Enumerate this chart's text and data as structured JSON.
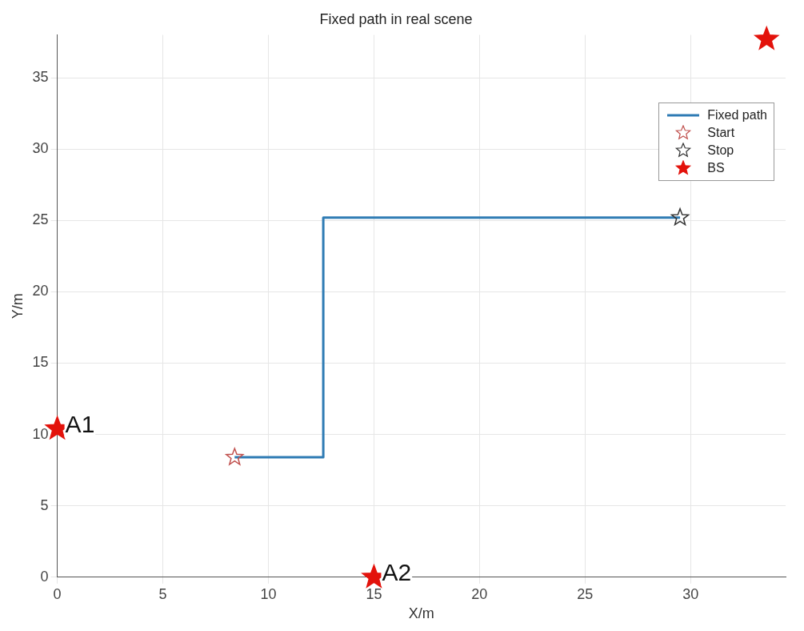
{
  "chart_data": {
    "type": "scatter",
    "title": "Fixed path in real scene",
    "xlabel": "X/m",
    "ylabel": "Y/m",
    "xlim": [
      0,
      34.5
    ],
    "ylim": [
      0,
      38
    ],
    "xticks": [
      0,
      5,
      10,
      15,
      20,
      25,
      30
    ],
    "yticks": [
      0,
      5,
      10,
      15,
      20,
      25,
      30,
      35
    ],
    "grid": true,
    "legend": "top right",
    "series": [
      {
        "name": "Fixed path",
        "type": "line",
        "color": "#2e7bb4",
        "marker": "none",
        "line_style": "solid",
        "x": [
          8.4,
          12.6,
          12.6,
          29.5
        ],
        "values": [
          8.4,
          8.4,
          25.2,
          25.2
        ]
      },
      {
        "name": "Start",
        "type": "scatter",
        "color": "#c0504d",
        "marker": "star",
        "x": [
          8.4
        ],
        "values": [
          8.4
        ]
      },
      {
        "name": "Stop",
        "type": "scatter",
        "color": "#333333",
        "marker": "star",
        "x": [
          29.5
        ],
        "values": [
          25.2
        ]
      },
      {
        "name": "BS",
        "type": "scatter",
        "color": "#e3120b",
        "marker": "star",
        "x": [
          0,
          15,
          33.6
        ],
        "values": [
          10.4,
          0,
          37.7
        ]
      }
    ],
    "annotations": [
      {
        "text": "A1",
        "x": 0,
        "y": 10.4
      },
      {
        "text": "A2",
        "x": 15,
        "y": 0
      }
    ]
  }
}
